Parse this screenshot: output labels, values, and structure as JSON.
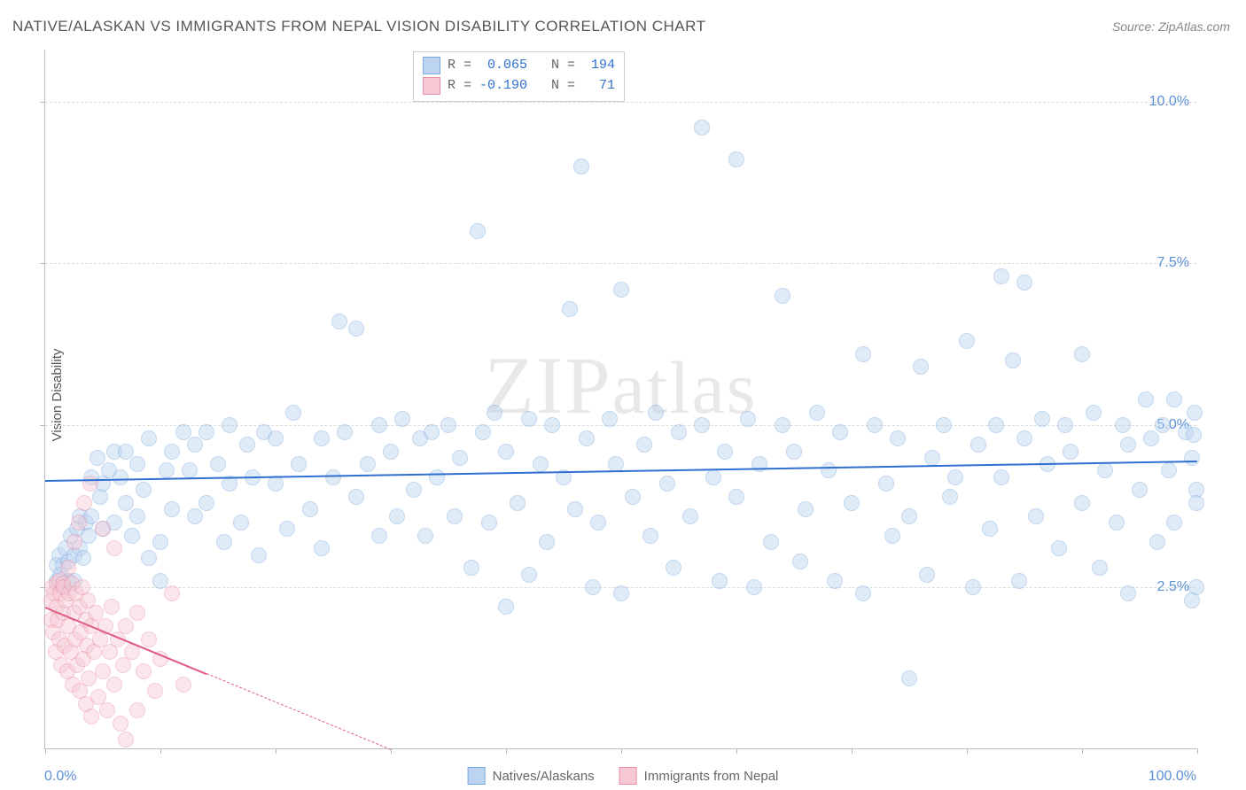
{
  "title": "NATIVE/ALASKAN VS IMMIGRANTS FROM NEPAL VISION DISABILITY CORRELATION CHART",
  "source_prefix": "Source: ",
  "source_name": "ZipAtlas.com",
  "ylabel": "Vision Disability",
  "watermark": "ZIPatlas",
  "chart": {
    "type": "scatter",
    "xlim": [
      0,
      100
    ],
    "ylim": [
      0,
      10.8
    ],
    "x_tick_step": 10,
    "y_ticks": [
      2.5,
      5.0,
      7.5,
      10.0
    ],
    "y_tick_labels": [
      "2.5%",
      "5.0%",
      "7.5%",
      "10.0%"
    ],
    "x_min_label": "0.0%",
    "x_max_label": "100.0%",
    "background_color": "#ffffff",
    "grid_color": "#dddddd",
    "axis_color": "#bbbbbb",
    "tick_label_color": "#5b8fd6",
    "marker_radius": 9,
    "marker_opacity": 0.45,
    "series": [
      {
        "name": "Natives/Alaskans",
        "fill": "#bcd4f0",
        "stroke": "#7aa8dd",
        "trend_color": "#2f6fd0",
        "trend_width": 2.5,
        "trend": {
          "x1": 0,
          "y1": 4.15,
          "x2": 100,
          "y2": 4.45,
          "dashed_after_x": null
        },
        "R": "0.065",
        "N": "194",
        "points": [
          [
            1,
            2.85
          ],
          [
            1,
            2.6
          ],
          [
            1.2,
            3.0
          ],
          [
            1.3,
            2.7
          ],
          [
            1.5,
            2.5
          ],
          [
            1.5,
            2.85
          ],
          [
            1.8,
            3.1
          ],
          [
            2,
            2.9
          ],
          [
            2,
            2.6
          ],
          [
            2.2,
            3.3
          ],
          [
            2.5,
            3.0
          ],
          [
            2.5,
            2.6
          ],
          [
            2.8,
            3.4
          ],
          [
            3,
            3.1
          ],
          [
            3,
            3.6
          ],
          [
            3.3,
            2.95
          ],
          [
            3.5,
            3.5
          ],
          [
            3.8,
            3.3
          ],
          [
            4,
            3.6
          ],
          [
            4,
            4.2
          ],
          [
            4.5,
            4.5
          ],
          [
            4.8,
            3.9
          ],
          [
            5,
            3.4
          ],
          [
            5,
            4.1
          ],
          [
            5.5,
            4.3
          ],
          [
            6,
            4.6
          ],
          [
            6,
            3.5
          ],
          [
            6.5,
            4.2
          ],
          [
            7,
            4.6
          ],
          [
            7,
            3.8
          ],
          [
            7.5,
            3.3
          ],
          [
            8,
            4.4
          ],
          [
            8,
            3.6
          ],
          [
            8.5,
            4.0
          ],
          [
            9,
            4.8
          ],
          [
            9,
            2.95
          ],
          [
            10,
            3.2
          ],
          [
            10,
            2.6
          ],
          [
            10.5,
            4.3
          ],
          [
            11,
            4.6
          ],
          [
            11,
            3.7
          ],
          [
            12,
            4.9
          ],
          [
            12.5,
            4.3
          ],
          [
            13,
            3.6
          ],
          [
            13,
            4.7
          ],
          [
            14,
            3.8
          ],
          [
            14,
            4.9
          ],
          [
            15,
            4.4
          ],
          [
            15.5,
            3.2
          ],
          [
            16,
            4.1
          ],
          [
            16,
            5.0
          ],
          [
            17,
            3.5
          ],
          [
            17.5,
            4.7
          ],
          [
            18,
            4.2
          ],
          [
            18.5,
            3.0
          ],
          [
            19,
            4.9
          ],
          [
            20,
            4.1
          ],
          [
            20,
            4.8
          ],
          [
            21,
            3.4
          ],
          [
            21.5,
            5.2
          ],
          [
            22,
            4.4
          ],
          [
            23,
            3.7
          ],
          [
            24,
            4.8
          ],
          [
            24,
            3.1
          ],
          [
            25,
            4.2
          ],
          [
            25.5,
            6.6
          ],
          [
            26,
            4.9
          ],
          [
            27,
            3.9
          ],
          [
            27,
            6.5
          ],
          [
            28,
            4.4
          ],
          [
            29,
            3.3
          ],
          [
            29,
            5.0
          ],
          [
            30,
            4.6
          ],
          [
            30.5,
            3.6
          ],
          [
            31,
            5.1
          ],
          [
            32,
            4.0
          ],
          [
            32.5,
            4.8
          ],
          [
            33,
            3.3
          ],
          [
            33.5,
            4.9
          ],
          [
            34,
            4.2
          ],
          [
            35,
            5.0
          ],
          [
            35.5,
            3.6
          ],
          [
            36,
            4.5
          ],
          [
            37,
            2.8
          ],
          [
            37.5,
            8.0
          ],
          [
            38,
            4.9
          ],
          [
            38.5,
            3.5
          ],
          [
            39,
            5.2
          ],
          [
            40,
            4.6
          ],
          [
            40,
            2.2
          ],
          [
            41,
            3.8
          ],
          [
            42,
            5.1
          ],
          [
            42,
            2.7
          ],
          [
            43,
            4.4
          ],
          [
            43.5,
            3.2
          ],
          [
            44,
            5.0
          ],
          [
            45,
            4.2
          ],
          [
            45.5,
            6.8
          ],
          [
            46,
            3.7
          ],
          [
            46.5,
            9.0
          ],
          [
            47,
            4.8
          ],
          [
            47.5,
            2.5
          ],
          [
            48,
            3.5
          ],
          [
            49,
            5.1
          ],
          [
            49.5,
            4.4
          ],
          [
            50,
            2.4
          ],
          [
            50,
            7.1
          ],
          [
            51,
            3.9
          ],
          [
            52,
            4.7
          ],
          [
            52.5,
            3.3
          ],
          [
            53,
            5.2
          ],
          [
            54,
            4.1
          ],
          [
            54.5,
            2.8
          ],
          [
            55,
            4.9
          ],
          [
            56,
            3.6
          ],
          [
            57,
            5.0
          ],
          [
            57,
            9.6
          ],
          [
            58,
            4.2
          ],
          [
            58.5,
            2.6
          ],
          [
            59,
            4.6
          ],
          [
            60,
            3.9
          ],
          [
            60,
            9.1
          ],
          [
            61,
            5.1
          ],
          [
            61.5,
            2.5
          ],
          [
            62,
            4.4
          ],
          [
            63,
            3.2
          ],
          [
            64,
            5.0
          ],
          [
            64,
            7.0
          ],
          [
            65,
            4.6
          ],
          [
            65.5,
            2.9
          ],
          [
            66,
            3.7
          ],
          [
            67,
            5.2
          ],
          [
            68,
            4.3
          ],
          [
            68.5,
            2.6
          ],
          [
            69,
            4.9
          ],
          [
            70,
            3.8
          ],
          [
            71,
            6.1
          ],
          [
            71,
            2.4
          ],
          [
            72,
            5.0
          ],
          [
            73,
            4.1
          ],
          [
            73.5,
            3.3
          ],
          [
            74,
            4.8
          ],
          [
            75,
            3.6
          ],
          [
            75,
            1.1
          ],
          [
            76,
            5.9
          ],
          [
            76.5,
            2.7
          ],
          [
            77,
            4.5
          ],
          [
            78,
            5.0
          ],
          [
            78.5,
            3.9
          ],
          [
            79,
            4.2
          ],
          [
            80,
            6.3
          ],
          [
            80.5,
            2.5
          ],
          [
            81,
            4.7
          ],
          [
            82,
            3.4
          ],
          [
            82.5,
            5.0
          ],
          [
            83,
            4.2
          ],
          [
            83,
            7.3
          ],
          [
            84,
            6.0
          ],
          [
            84.5,
            2.6
          ],
          [
            85,
            4.8
          ],
          [
            85,
            7.2
          ],
          [
            86,
            3.6
          ],
          [
            86.5,
            5.1
          ],
          [
            87,
            4.4
          ],
          [
            88,
            3.1
          ],
          [
            88.5,
            5.0
          ],
          [
            89,
            4.6
          ],
          [
            90,
            3.8
          ],
          [
            90,
            6.1
          ],
          [
            91,
            5.2
          ],
          [
            91.5,
            2.8
          ],
          [
            92,
            4.3
          ],
          [
            93,
            3.5
          ],
          [
            93.5,
            5.0
          ],
          [
            94,
            4.7
          ],
          [
            94,
            2.4
          ],
          [
            95,
            4.0
          ],
          [
            95.5,
            5.4
          ],
          [
            96,
            4.8
          ],
          [
            96.5,
            3.2
          ],
          [
            97,
            5.0
          ],
          [
            97.5,
            4.3
          ],
          [
            98,
            3.5
          ],
          [
            98,
            5.4
          ],
          [
            99,
            4.9
          ],
          [
            99.5,
            4.5
          ],
          [
            99.8,
            5.2
          ],
          [
            99.9,
            4.0
          ],
          [
            99.9,
            2.5
          ],
          [
            99.9,
            3.8
          ],
          [
            99.5,
            2.3
          ],
          [
            99.7,
            4.85
          ]
        ]
      },
      {
        "name": "Immigrants from Nepal",
        "fill": "#f6c8d4",
        "stroke": "#e98fa8",
        "trend_color": "#e05a84",
        "trend_width": 2.2,
        "trend": {
          "x1": 0,
          "y1": 2.2,
          "x2": 30,
          "y2": 0.0,
          "dashed_after_x": 14
        },
        "R": "-0.190",
        "N": "71",
        "points": [
          [
            0.5,
            2.3
          ],
          [
            0.5,
            2.0
          ],
          [
            0.6,
            2.5
          ],
          [
            0.7,
            1.8
          ],
          [
            0.8,
            2.4
          ],
          [
            0.9,
            1.5
          ],
          [
            1.0,
            2.55
          ],
          [
            1.0,
            2.2
          ],
          [
            1.1,
            2.0
          ],
          [
            1.2,
            2.6
          ],
          [
            1.2,
            1.7
          ],
          [
            1.3,
            2.4
          ],
          [
            1.4,
            1.3
          ],
          [
            1.5,
            2.55
          ],
          [
            1.5,
            2.1
          ],
          [
            1.6,
            2.5
          ],
          [
            1.7,
            1.6
          ],
          [
            1.8,
            2.3
          ],
          [
            1.9,
            1.2
          ],
          [
            2.0,
            2.8
          ],
          [
            2.0,
            1.9
          ],
          [
            2.1,
            2.4
          ],
          [
            2.2,
            1.5
          ],
          [
            2.3,
            2.55
          ],
          [
            2.4,
            1.0
          ],
          [
            2.5,
            3.2
          ],
          [
            2.5,
            2.1
          ],
          [
            2.6,
            1.7
          ],
          [
            2.7,
            2.4
          ],
          [
            2.8,
            1.3
          ],
          [
            2.9,
            3.5
          ],
          [
            3.0,
            2.2
          ],
          [
            3.0,
            0.9
          ],
          [
            3.1,
            1.8
          ],
          [
            3.2,
            2.5
          ],
          [
            3.3,
            1.4
          ],
          [
            3.4,
            3.8
          ],
          [
            3.5,
            2.0
          ],
          [
            3.5,
            0.7
          ],
          [
            3.6,
            1.6
          ],
          [
            3.7,
            2.3
          ],
          [
            3.8,
            1.1
          ],
          [
            3.9,
            4.1
          ],
          [
            4.0,
            1.9
          ],
          [
            4.0,
            0.5
          ],
          [
            4.2,
            1.5
          ],
          [
            4.4,
            2.1
          ],
          [
            4.6,
            0.8
          ],
          [
            4.8,
            1.7
          ],
          [
            5.0,
            1.2
          ],
          [
            5.0,
            3.4
          ],
          [
            5.2,
            1.9
          ],
          [
            5.4,
            0.6
          ],
          [
            5.6,
            1.5
          ],
          [
            5.8,
            2.2
          ],
          [
            6.0,
            1.0
          ],
          [
            6.0,
            3.1
          ],
          [
            6.3,
            1.7
          ],
          [
            6.5,
            0.4
          ],
          [
            6.8,
            1.3
          ],
          [
            7.0,
            1.9
          ],
          [
            7.0,
            0.15
          ],
          [
            7.5,
            1.5
          ],
          [
            8.0,
            2.1
          ],
          [
            8.0,
            0.6
          ],
          [
            8.5,
            1.2
          ],
          [
            9.0,
            1.7
          ],
          [
            9.5,
            0.9
          ],
          [
            10.0,
            1.4
          ],
          [
            11.0,
            2.4
          ],
          [
            12.0,
            1.0
          ]
        ]
      }
    ],
    "legend_stats": {
      "r_label": "R =",
      "n_label": "N ="
    },
    "bottom_legend": [
      {
        "label": "Natives/Alaskans",
        "fill": "#bcd4f0",
        "stroke": "#7aa8dd"
      },
      {
        "label": "Immigrants from Nepal",
        "fill": "#f6c8d4",
        "stroke": "#e98fa8"
      }
    ]
  }
}
